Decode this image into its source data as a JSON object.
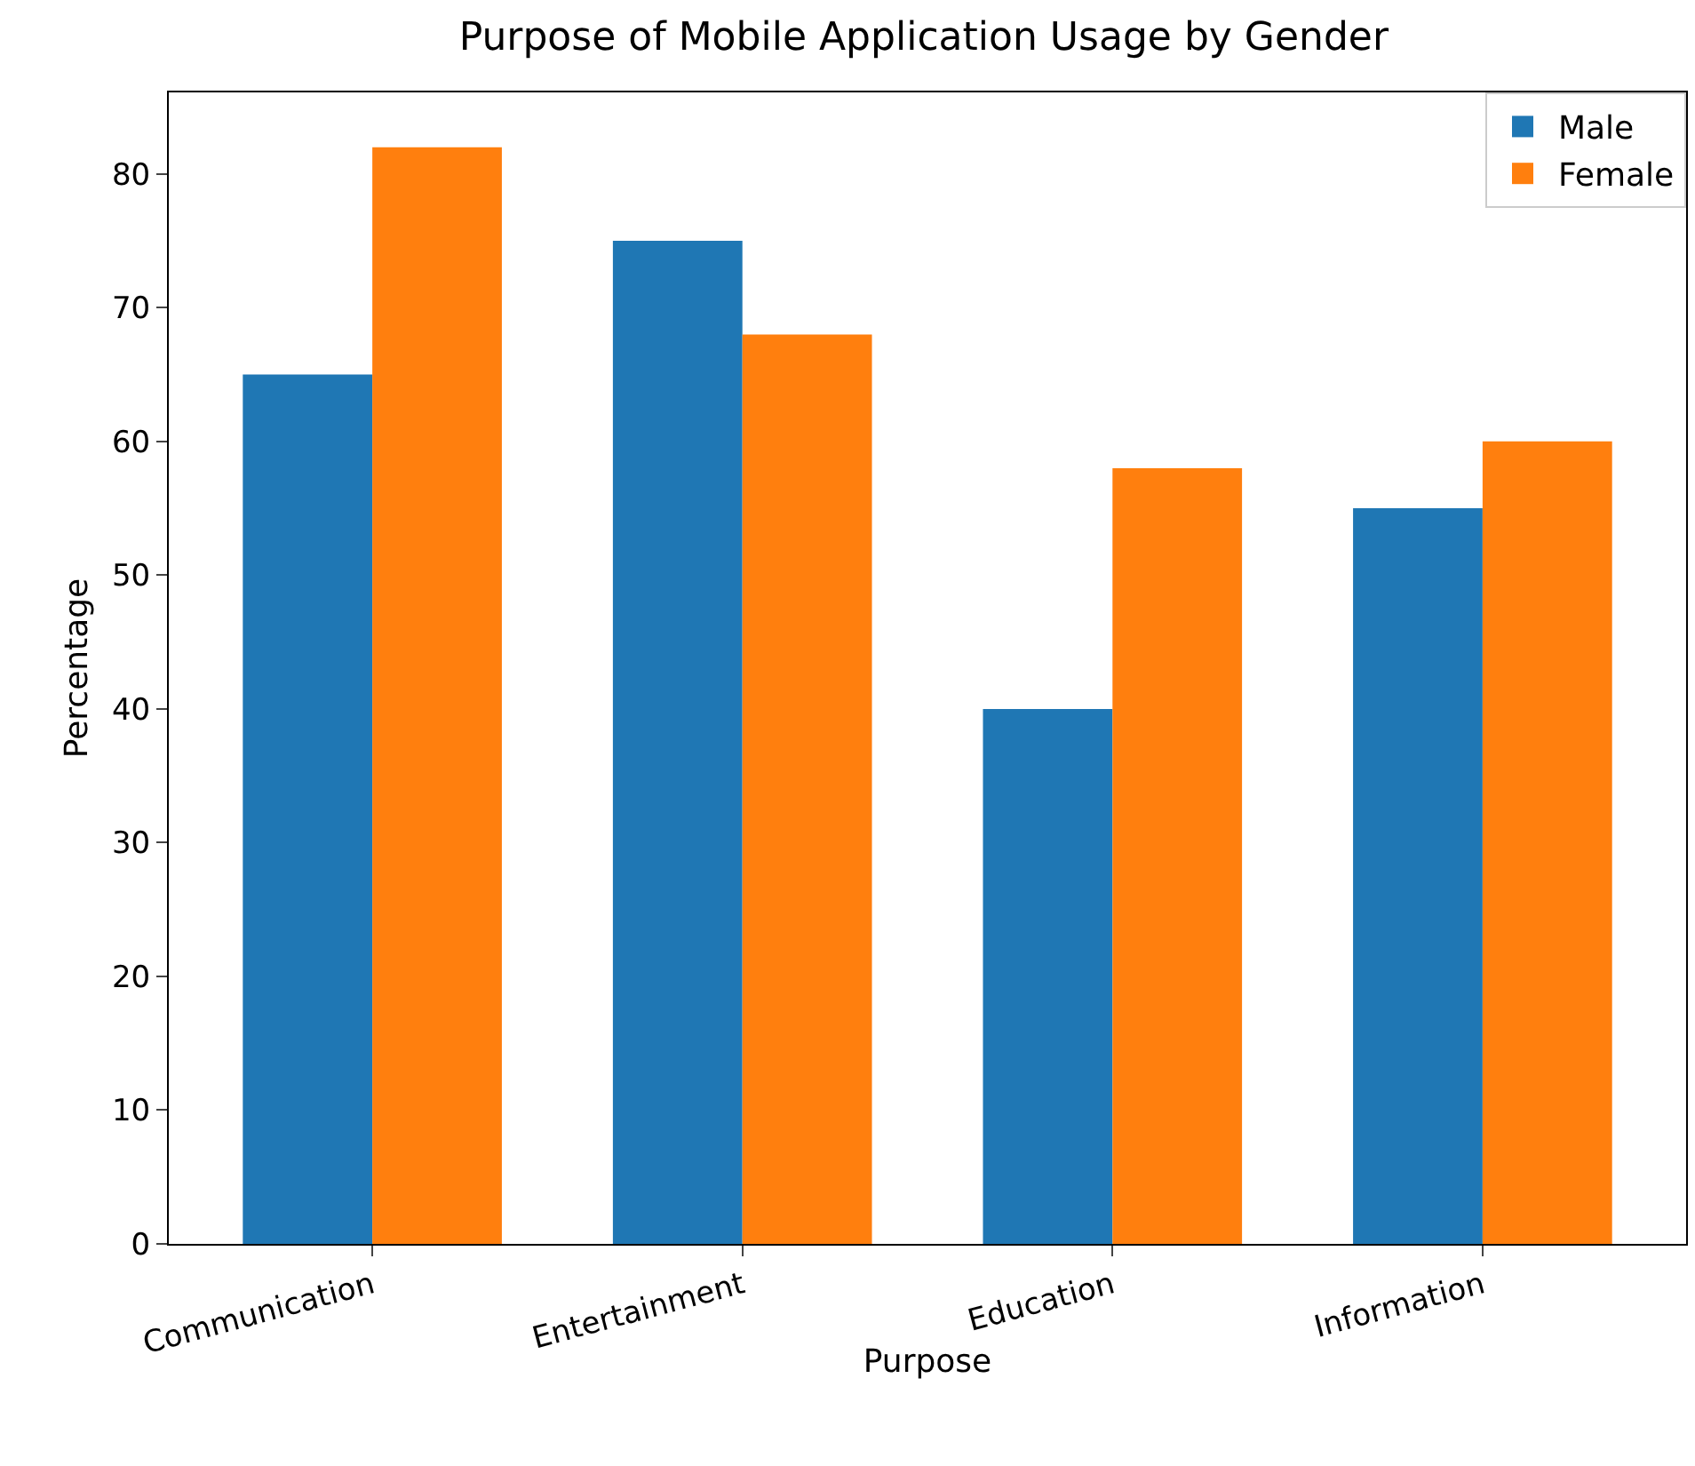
{
  "chart_data": {
    "type": "bar",
    "title": "Purpose of Mobile Application Usage by Gender",
    "xlabel": "Purpose",
    "ylabel": "Percentage",
    "categories": [
      "Communication",
      "Entertainment",
      "Education",
      "Information"
    ],
    "series": [
      {
        "name": "Male",
        "color": "#1f77b4",
        "values": [
          65,
          75,
          40,
          55
        ]
      },
      {
        "name": "Female",
        "color": "#ff7f0e",
        "values": [
          82,
          68,
          58,
          60
        ]
      }
    ],
    "ylim": [
      0,
      86.1
    ],
    "yticks": [
      0,
      10,
      20,
      30,
      40,
      50,
      60,
      70,
      80
    ],
    "grid": false,
    "legend": "top right"
  }
}
